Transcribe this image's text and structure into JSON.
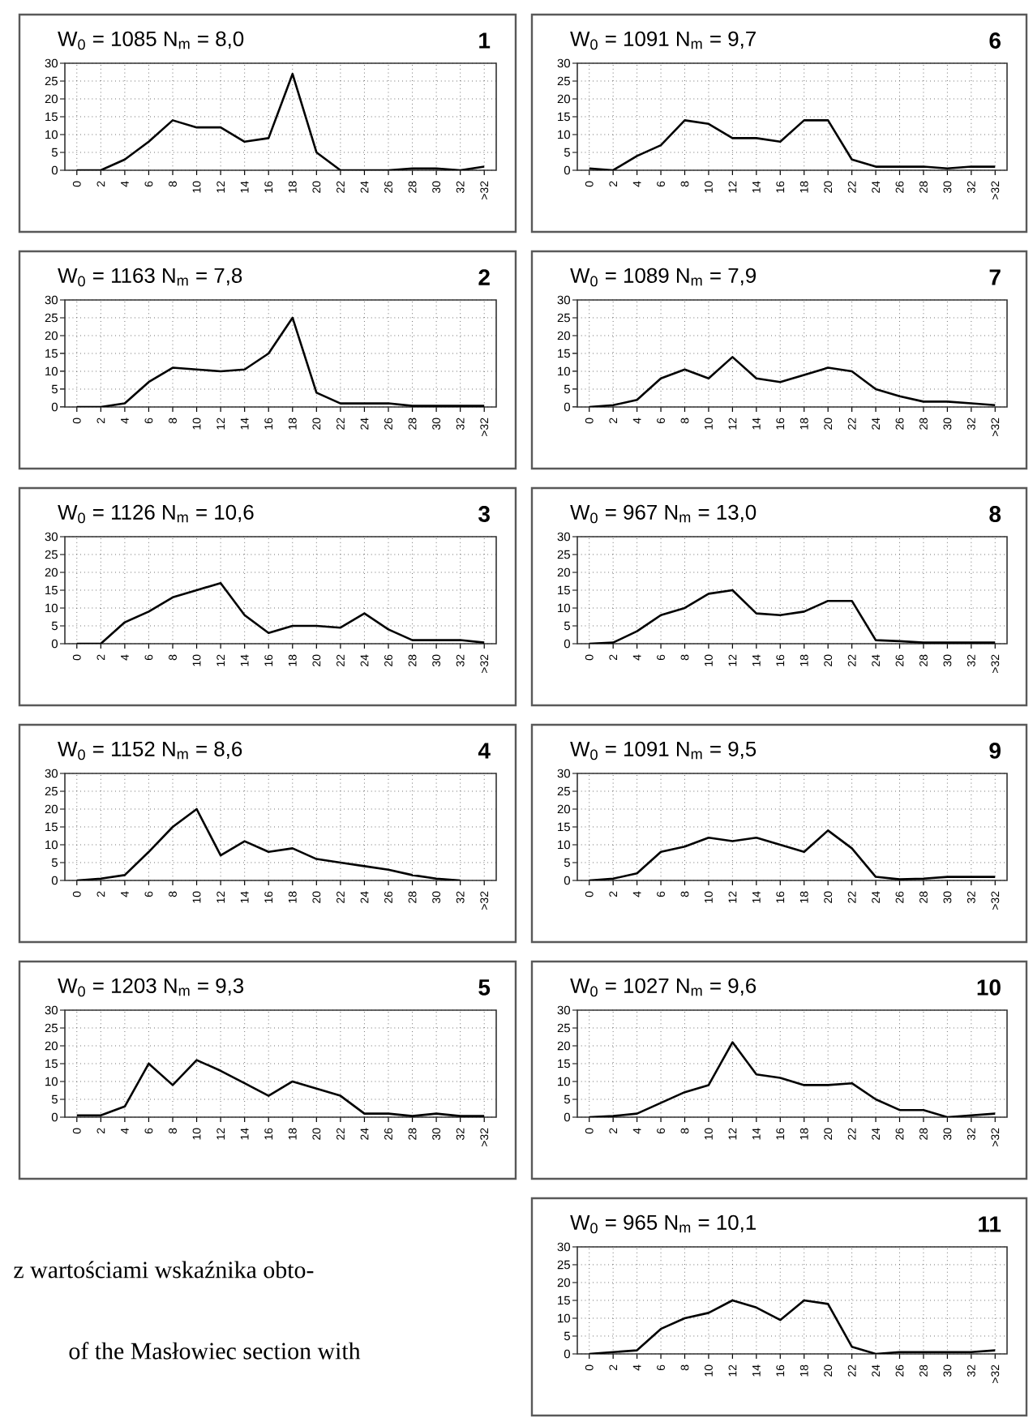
{
  "chart_data": [
    {
      "type": "line",
      "title": "W$_{0}$ = 1085    N$_{m}$ = 8,0",
      "subtitle": "1",
      "categories": [
        "0",
        "2",
        "4",
        "6",
        "8",
        "10",
        "12",
        "14",
        "16",
        "18",
        "20",
        "22",
        "24",
        "26",
        "28",
        "30",
        "32",
        ">32"
      ],
      "values": [
        0,
        0,
        3,
        8,
        14,
        12,
        12,
        8,
        9,
        27,
        5,
        0,
        0,
        0,
        0.5,
        0.5,
        0,
        1
      ],
      "color": "#000000",
      "ylim": [
        0,
        30
      ],
      "yticks": [
        0,
        5,
        10,
        15,
        20,
        25,
        30
      ],
      "grid": true
    },
    {
      "type": "line",
      "title": "W$_{0}$ = 1163    N$_{m}$ = 7,8",
      "subtitle": "2",
      "categories": [
        "0",
        "2",
        "4",
        "6",
        "8",
        "10",
        "12",
        "14",
        "16",
        "18",
        "20",
        "22",
        "24",
        "26",
        "28",
        "30",
        "32",
        ">32"
      ],
      "values": [
        0,
        0,
        1,
        7,
        11,
        10.5,
        10,
        10.5,
        15,
        25,
        4,
        1,
        1,
        1,
        0.3,
        0.3,
        0.3,
        0.3
      ],
      "color": "#000000",
      "ylim": [
        0,
        30
      ],
      "yticks": [
        0,
        5,
        10,
        15,
        20,
        25,
        30
      ],
      "grid": true
    },
    {
      "type": "line",
      "title": "W$_{0}$ = 1126    N$_{m}$ = 10,6",
      "subtitle": "3",
      "categories": [
        "0",
        "2",
        "4",
        "6",
        "8",
        "10",
        "12",
        "14",
        "16",
        "18",
        "20",
        "22",
        "24",
        "26",
        "28",
        "30",
        "32",
        ">32"
      ],
      "values": [
        0,
        0,
        6,
        9,
        13,
        15,
        17,
        8,
        3,
        5,
        5,
        4.5,
        8.5,
        4,
        1,
        1,
        1,
        0.3
      ],
      "color": "#000000",
      "ylim": [
        0,
        30
      ],
      "yticks": [
        0,
        5,
        10,
        15,
        20,
        25,
        30
      ],
      "grid": true
    },
    {
      "type": "line",
      "title": "W$_{0}$ = 1152    N$_{m}$ = 8,6",
      "subtitle": "4",
      "categories": [
        "0",
        "2",
        "4",
        "6",
        "8",
        "10",
        "12",
        "14",
        "16",
        "18",
        "20",
        "22",
        "24",
        "26",
        "28",
        "30",
        "32",
        ">32"
      ],
      "values": [
        0,
        0.5,
        1.5,
        8,
        15,
        20,
        7,
        11,
        8,
        9,
        6,
        5,
        4,
        3,
        1.5,
        0.5,
        0,
        null
      ],
      "color": "#000000",
      "ylim": [
        0,
        30
      ],
      "yticks": [
        0,
        5,
        10,
        15,
        20,
        25,
        30
      ],
      "grid": true
    },
    {
      "type": "line",
      "title": "W$_{0}$ = 1203    N$_{m}$ = 9,3",
      "subtitle": "5",
      "categories": [
        "0",
        "2",
        "4",
        "6",
        "8",
        "10",
        "12",
        "14",
        "16",
        "18",
        "20",
        "22",
        "24",
        "26",
        "28",
        "30",
        "32",
        ">32"
      ],
      "values": [
        0.5,
        0.5,
        3,
        15,
        9,
        16,
        13,
        9.5,
        6,
        10,
        8,
        6,
        1,
        1,
        0.3,
        1,
        0.3,
        0.3
      ],
      "color": "#000000",
      "ylim": [
        0,
        30
      ],
      "yticks": [
        0,
        5,
        10,
        15,
        20,
        25,
        30
      ],
      "grid": true
    },
    {
      "type": "line",
      "title": "W$_{0}$ = 1091    N$_{m}$ = 9,7",
      "subtitle": "6",
      "categories": [
        "0",
        "2",
        "4",
        "6",
        "8",
        "10",
        "12",
        "14",
        "16",
        "18",
        "20",
        "22",
        "24",
        "26",
        "28",
        "30",
        "32",
        ">32"
      ],
      "values": [
        0.5,
        0,
        4,
        7,
        14,
        13,
        9,
        9,
        8,
        14,
        14,
        3,
        1,
        1,
        1,
        0.5,
        1,
        1
      ],
      "color": "#000000",
      "ylim": [
        0,
        30
      ],
      "yticks": [
        0,
        5,
        10,
        15,
        20,
        25,
        30
      ],
      "grid": true
    },
    {
      "type": "line",
      "title": "W$_{0}$ = 1089    N$_{m}$ = 7,9",
      "subtitle": "7",
      "categories": [
        "0",
        "2",
        "4",
        "6",
        "8",
        "10",
        "12",
        "14",
        "16",
        "18",
        "20",
        "22",
        "24",
        "26",
        "28",
        "30",
        "32",
        ">32"
      ],
      "values": [
        0,
        0.5,
        2,
        8,
        10.5,
        8,
        14,
        8,
        7,
        9,
        11,
        10,
        5,
        3,
        1.5,
        1.5,
        1,
        0.5
      ],
      "color": "#000000",
      "ylim": [
        0,
        30
      ],
      "yticks": [
        0,
        5,
        10,
        15,
        20,
        25,
        30
      ],
      "grid": true
    },
    {
      "type": "line",
      "title": "W$_{0}$ = 967    N$_{m}$ = 13,0",
      "subtitle": "8",
      "categories": [
        "0",
        "2",
        "4",
        "6",
        "8",
        "10",
        "12",
        "14",
        "16",
        "18",
        "20",
        "22",
        "24",
        "26",
        "28",
        "30",
        "32",
        ">32"
      ],
      "values": [
        0,
        0.3,
        3.5,
        8,
        10,
        14,
        15,
        8.5,
        8,
        9,
        12,
        12,
        1,
        0.7,
        0.3,
        0.3,
        0.3,
        0.3
      ],
      "color": "#000000",
      "ylim": [
        0,
        30
      ],
      "yticks": [
        0,
        5,
        10,
        15,
        20,
        25,
        30
      ],
      "grid": true
    },
    {
      "type": "line",
      "title": "W$_{0}$ = 1091    N$_{m}$ = 9,5",
      "subtitle": "9",
      "categories": [
        "0",
        "2",
        "4",
        "6",
        "8",
        "10",
        "12",
        "14",
        "16",
        "18",
        "20",
        "22",
        "24",
        "26",
        "28",
        "30",
        "32",
        ">32"
      ],
      "values": [
        0,
        0.5,
        2,
        8,
        9.5,
        12,
        11,
        12,
        10,
        8,
        14,
        9,
        1,
        0.3,
        0.5,
        1,
        1,
        1
      ],
      "color": "#000000",
      "ylim": [
        0,
        30
      ],
      "yticks": [
        0,
        5,
        10,
        15,
        20,
        25,
        30
      ],
      "grid": true
    },
    {
      "type": "line",
      "title": "W$_{0}$ = 1027    N$_{m}$ = 9,6",
      "subtitle": "10",
      "categories": [
        "0",
        "2",
        "4",
        "6",
        "8",
        "10",
        "12",
        "14",
        "16",
        "18",
        "20",
        "22",
        "24",
        "26",
        "28",
        "30",
        "32",
        ">32"
      ],
      "values": [
        0,
        0.3,
        1,
        4,
        7,
        9,
        21,
        12,
        11,
        9,
        9,
        9.5,
        5,
        2,
        2,
        0,
        0.5,
        1
      ],
      "color": "#000000",
      "ylim": [
        0,
        30
      ],
      "yticks": [
        0,
        5,
        10,
        15,
        20,
        25,
        30
      ],
      "grid": true
    },
    {
      "type": "line",
      "title": "W$_{0}$ = 965    N$_{m}$ = 10,1",
      "subtitle": "11",
      "categories": [
        "0",
        "2",
        "4",
        "6",
        "8",
        "10",
        "12",
        "14",
        "16",
        "18",
        "20",
        "22",
        "24",
        "26",
        "28",
        "30",
        "32",
        ">32"
      ],
      "values": [
        0,
        0.5,
        1,
        7,
        10,
        11.5,
        15,
        13,
        9.5,
        15,
        14,
        2,
        0,
        0.5,
        0.5,
        0.5,
        0.5,
        1
      ],
      "color": "#000000",
      "ylim": [
        0,
        30
      ],
      "yticks": [
        0,
        5,
        10,
        15,
        20,
        25,
        30
      ],
      "grid": true
    },
    {
      "type": "other",
      "annotations": [
        "z wartościami wskaźnika obto-",
        "of the Masłowiec section with"
      ]
    }
  ]
}
